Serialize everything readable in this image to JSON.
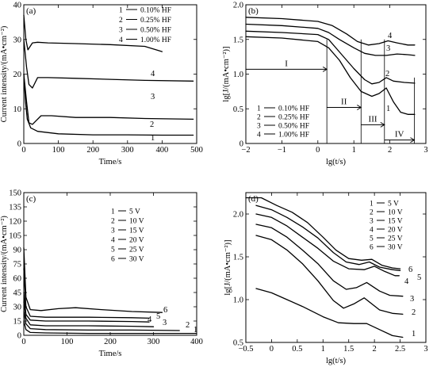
{
  "chart_data": [
    {
      "panel": "(a)",
      "type": "line",
      "xlabel": "Time/s",
      "ylabel": "Current intensity/(mA•cm⁻²)",
      "xlim": [
        0,
        500
      ],
      "ylim": [
        0,
        40
      ],
      "xticks": [
        0,
        100,
        200,
        300,
        400,
        500
      ],
      "yticks": [
        0,
        10,
        20,
        30,
        40
      ],
      "legend": [
        "1 — 0.10% HF",
        "2 — 0.25% HF",
        "3 — 0.50% HF",
        "4 — 1.00% HF"
      ],
      "curve_labels": [
        "1",
        "2",
        "3",
        "4"
      ],
      "series": [
        {
          "name": "0.10% HF",
          "label": "1",
          "points": [
            [
              0,
              20
            ],
            [
              5,
              12
            ],
            [
              10,
              7
            ],
            [
              20,
              4.5
            ],
            [
              40,
              3.5
            ],
            [
              100,
              2.8
            ],
            [
              200,
              2.5
            ],
            [
              300,
              2.5
            ],
            [
              400,
              2.4
            ],
            [
              490,
              2.4
            ]
          ]
        },
        {
          "name": "0.25% HF",
          "label": "2",
          "points": [
            [
              0,
              20
            ],
            [
              8,
              12
            ],
            [
              15,
              6
            ],
            [
              25,
              5.5
            ],
            [
              50,
              8
            ],
            [
              80,
              8
            ],
            [
              150,
              7.5
            ],
            [
              250,
              7.5
            ],
            [
              350,
              7.2
            ],
            [
              490,
              7.0
            ]
          ]
        },
        {
          "name": "0.50% HF",
          "label": "3",
          "points": [
            [
              0,
              30
            ],
            [
              8,
              22
            ],
            [
              15,
              17
            ],
            [
              25,
              16
            ],
            [
              40,
              19
            ],
            [
              70,
              19
            ],
            [
              150,
              18.8
            ],
            [
              250,
              18.5
            ],
            [
              350,
              18.2
            ],
            [
              490,
              18.0
            ]
          ]
        },
        {
          "name": "1.00% HF",
          "label": "4",
          "points": [
            [
              0,
              37
            ],
            [
              6,
              30
            ],
            [
              12,
              27
            ],
            [
              25,
              29
            ],
            [
              40,
              29.2
            ],
            [
              70,
              29
            ],
            [
              150,
              28.8
            ],
            [
              250,
              28.5
            ],
            [
              350,
              28
            ],
            [
              400,
              26.5
            ]
          ]
        }
      ]
    },
    {
      "panel": "(b)",
      "type": "line",
      "xlabel": "lg(t/s)",
      "ylabel": "lg[J/(mA•cm⁻²)]",
      "xlim": [
        -2,
        3
      ],
      "ylim": [
        0,
        2.0
      ],
      "xticks": [
        -2,
        -1,
        0,
        1,
        2,
        3
      ],
      "yticks": [
        0,
        0.5,
        1.0,
        1.5,
        2.0
      ],
      "legend": [
        "1 — 0.10% HF",
        "2 — 0.25% HF",
        "3 — 0.50% HF",
        "4 — 1.00% HF"
      ],
      "curve_labels": [
        "1",
        "2",
        "3",
        "4"
      ],
      "stage_labels": [
        "I",
        "II",
        "III",
        "IV"
      ],
      "series": [
        {
          "name": "0.10% HF",
          "label": "1",
          "points": [
            [
              -2,
              1.54
            ],
            [
              -1,
              1.52
            ],
            [
              0,
              1.47
            ],
            [
              0.3,
              1.38
            ],
            [
              0.6,
              1.2
            ],
            [
              0.9,
              0.95
            ],
            [
              1.2,
              0.75
            ],
            [
              1.5,
              0.68
            ],
            [
              1.7,
              0.72
            ],
            [
              1.9,
              0.8
            ],
            [
              2.1,
              0.6
            ],
            [
              2.3,
              0.45
            ],
            [
              2.5,
              0.42
            ],
            [
              2.69,
              0.42
            ]
          ]
        },
        {
          "name": "0.25% HF",
          "label": "2",
          "points": [
            [
              -2,
              1.62
            ],
            [
              -1,
              1.6
            ],
            [
              0,
              1.57
            ],
            [
              0.3,
              1.5
            ],
            [
              0.6,
              1.32
            ],
            [
              1.0,
              1.08
            ],
            [
              1.3,
              0.92
            ],
            [
              1.5,
              0.86
            ],
            [
              1.7,
              0.88
            ],
            [
              1.9,
              0.95
            ],
            [
              2.1,
              0.9
            ],
            [
              2.4,
              0.88
            ],
            [
              2.69,
              0.87
            ]
          ]
        },
        {
          "name": "0.50% HF",
          "label": "3",
          "points": [
            [
              -2,
              1.72
            ],
            [
              -1,
              1.7
            ],
            [
              0,
              1.66
            ],
            [
              0.3,
              1.6
            ],
            [
              0.6,
              1.5
            ],
            [
              1.0,
              1.38
            ],
            [
              1.3,
              1.3
            ],
            [
              1.6,
              1.27
            ],
            [
              1.9,
              1.27
            ],
            [
              2.2,
              1.29
            ],
            [
              2.5,
              1.28
            ],
            [
              2.69,
              1.27
            ]
          ]
        },
        {
          "name": "1.00% HF",
          "label": "4",
          "points": [
            [
              -2,
              1.82
            ],
            [
              -1,
              1.8
            ],
            [
              0,
              1.76
            ],
            [
              0.4,
              1.7
            ],
            [
              0.8,
              1.58
            ],
            [
              1.1,
              1.47
            ],
            [
              1.4,
              1.42
            ],
            [
              1.7,
              1.44
            ],
            [
              1.95,
              1.48
            ],
            [
              2.2,
              1.45
            ],
            [
              2.5,
              1.42
            ],
            [
              2.69,
              1.42
            ]
          ]
        }
      ]
    },
    {
      "panel": "(c)",
      "type": "line",
      "xlabel": "Time/s",
      "ylabel": "Current intensity/(mA•cm⁻²)",
      "xlim": [
        0,
        400
      ],
      "ylim": [
        0,
        150
      ],
      "xticks": [
        0,
        100,
        200,
        300,
        400
      ],
      "yticks": [
        0,
        15,
        30,
        45,
        60,
        75,
        90,
        105,
        120,
        135,
        150
      ],
      "legend": [
        "1 — 5 V",
        "2 — 10 V",
        "3 — 15 V",
        "4 — 20 V",
        "5 — 25 V",
        "6 — 30 V"
      ],
      "curve_labels": [
        "1",
        "2",
        "3",
        "4",
        "5",
        "6"
      ],
      "series": [
        {
          "name": "5 V",
          "label": "1",
          "points": [
            [
              0,
              15
            ],
            [
              5,
              6
            ],
            [
              15,
              3
            ],
            [
              50,
              2.5
            ],
            [
              150,
              2
            ],
            [
              250,
              2
            ],
            [
              400,
              2
            ]
          ]
        },
        {
          "name": "10 V",
          "label": "2",
          "points": [
            [
              0,
              25
            ],
            [
              5,
              12
            ],
            [
              15,
              7
            ],
            [
              50,
              6
            ],
            [
              150,
              5.5
            ],
            [
              250,
              5.5
            ],
            [
              360,
              5
            ]
          ]
        },
        {
          "name": "15 V",
          "label": "3",
          "points": [
            [
              0,
              35
            ],
            [
              5,
              18
            ],
            [
              15,
              11
            ],
            [
              50,
              10
            ],
            [
              150,
              10
            ],
            [
              250,
              9.5
            ],
            [
              300,
              9
            ]
          ]
        },
        {
          "name": "20 V",
          "label": "4",
          "points": [
            [
              0,
              45
            ],
            [
              5,
              22
            ],
            [
              15,
              16
            ],
            [
              50,
              15
            ],
            [
              150,
              15
            ],
            [
              250,
              14.5
            ],
            [
              290,
              14
            ]
          ]
        },
        {
          "name": "25 V",
          "label": "5",
          "points": [
            [
              0,
              70
            ],
            [
              5,
              30
            ],
            [
              15,
              20
            ],
            [
              50,
              19
            ],
            [
              150,
              19
            ],
            [
              250,
              18.5
            ],
            [
              290,
              18
            ]
          ]
        },
        {
          "name": "30 V",
          "label": "6",
          "points": [
            [
              0,
              92
            ],
            [
              5,
              40
            ],
            [
              15,
              27
            ],
            [
              40,
              26
            ],
            [
              80,
              28
            ],
            [
              120,
              29
            ],
            [
              180,
              27
            ],
            [
              250,
              25
            ],
            [
              320,
              24
            ]
          ]
        }
      ]
    },
    {
      "panel": "(d)",
      "type": "line",
      "xlabel": "lg(t/s)",
      "ylabel": "lg[J/(mA•cm⁻²)]",
      "xlim": [
        -0.5,
        3.0
      ],
      "ylim": [
        0.5,
        2.25
      ],
      "xticks": [
        -0.5,
        0,
        0.5,
        1.0,
        1.5,
        2.0,
        2.5,
        3.0
      ],
      "yticks": [
        0.5,
        1.0,
        1.5,
        2.0
      ],
      "legend": [
        "1 — 5 V",
        "2 — 10 V",
        "3 — 15 V",
        "4 — 20 V",
        "5 — 25 V",
        "6 — 30 V"
      ],
      "curve_labels": [
        "1",
        "2",
        "3",
        "4",
        "5",
        "6"
      ],
      "series": [
        {
          "name": "5 V",
          "label": "1",
          "points": [
            [
              -0.3,
              1.13
            ],
            [
              0,
              1.08
            ],
            [
              0.3,
              1.0
            ],
            [
              0.6,
              0.92
            ],
            [
              1.0,
              0.8
            ],
            [
              1.3,
              0.73
            ],
            [
              1.6,
              0.72
            ],
            [
              1.85,
              0.72
            ],
            [
              2.1,
              0.65
            ],
            [
              2.35,
              0.58
            ],
            [
              2.55,
              0.56
            ]
          ]
        },
        {
          "name": "10 V",
          "label": "2",
          "points": [
            [
              -0.3,
              1.75
            ],
            [
              0,
              1.7
            ],
            [
              0.3,
              1.58
            ],
            [
              0.6,
              1.42
            ],
            [
              0.9,
              1.22
            ],
            [
              1.2,
              0.99
            ],
            [
              1.4,
              0.9
            ],
            [
              1.6,
              0.95
            ],
            [
              1.8,
              1.02
            ],
            [
              2.1,
              0.88
            ],
            [
              2.35,
              0.84
            ],
            [
              2.55,
              0.83
            ]
          ]
        },
        {
          "name": "15 V",
          "label": "3",
          "points": [
            [
              -0.3,
              1.88
            ],
            [
              0,
              1.84
            ],
            [
              0.3,
              1.73
            ],
            [
              0.6,
              1.58
            ],
            [
              0.9,
              1.42
            ],
            [
              1.2,
              1.22
            ],
            [
              1.45,
              1.12
            ],
            [
              1.65,
              1.14
            ],
            [
              1.85,
              1.2
            ],
            [
              2.1,
              1.1
            ],
            [
              2.3,
              1.05
            ],
            [
              2.55,
              1.04
            ]
          ]
        },
        {
          "name": "20 V",
          "label": "4",
          "points": [
            [
              -0.3,
              2.0
            ],
            [
              0,
              1.96
            ],
            [
              0.3,
              1.86
            ],
            [
              0.6,
              1.73
            ],
            [
              0.9,
              1.6
            ],
            [
              1.2,
              1.45
            ],
            [
              1.5,
              1.36
            ],
            [
              1.8,
              1.35
            ],
            [
              2.0,
              1.39
            ],
            [
              2.2,
              1.33
            ],
            [
              2.4,
              1.28
            ],
            [
              2.48,
              1.28
            ]
          ]
        },
        {
          "name": "25 V",
          "label": "5",
          "points": [
            [
              -0.3,
              2.1
            ],
            [
              0,
              2.05
            ],
            [
              0.3,
              1.96
            ],
            [
              0.6,
              1.85
            ],
            [
              0.9,
              1.72
            ],
            [
              1.2,
              1.55
            ],
            [
              1.45,
              1.44
            ],
            [
              1.7,
              1.41
            ],
            [
              1.9,
              1.44
            ],
            [
              2.1,
              1.38
            ],
            [
              2.35,
              1.35
            ],
            [
              2.5,
              1.34
            ]
          ]
        },
        {
          "name": "30 V",
          "label": "6",
          "points": [
            [
              -0.5,
              2.19
            ],
            [
              -0.2,
              2.19
            ],
            [
              0.1,
              2.1
            ],
            [
              0.4,
              2.02
            ],
            [
              0.7,
              1.9
            ],
            [
              1.0,
              1.73
            ],
            [
              1.25,
              1.58
            ],
            [
              1.5,
              1.48
            ],
            [
              1.75,
              1.46
            ],
            [
              1.95,
              1.47
            ],
            [
              2.15,
              1.4
            ],
            [
              2.35,
              1.37
            ],
            [
              2.5,
              1.36
            ]
          ]
        }
      ]
    }
  ]
}
